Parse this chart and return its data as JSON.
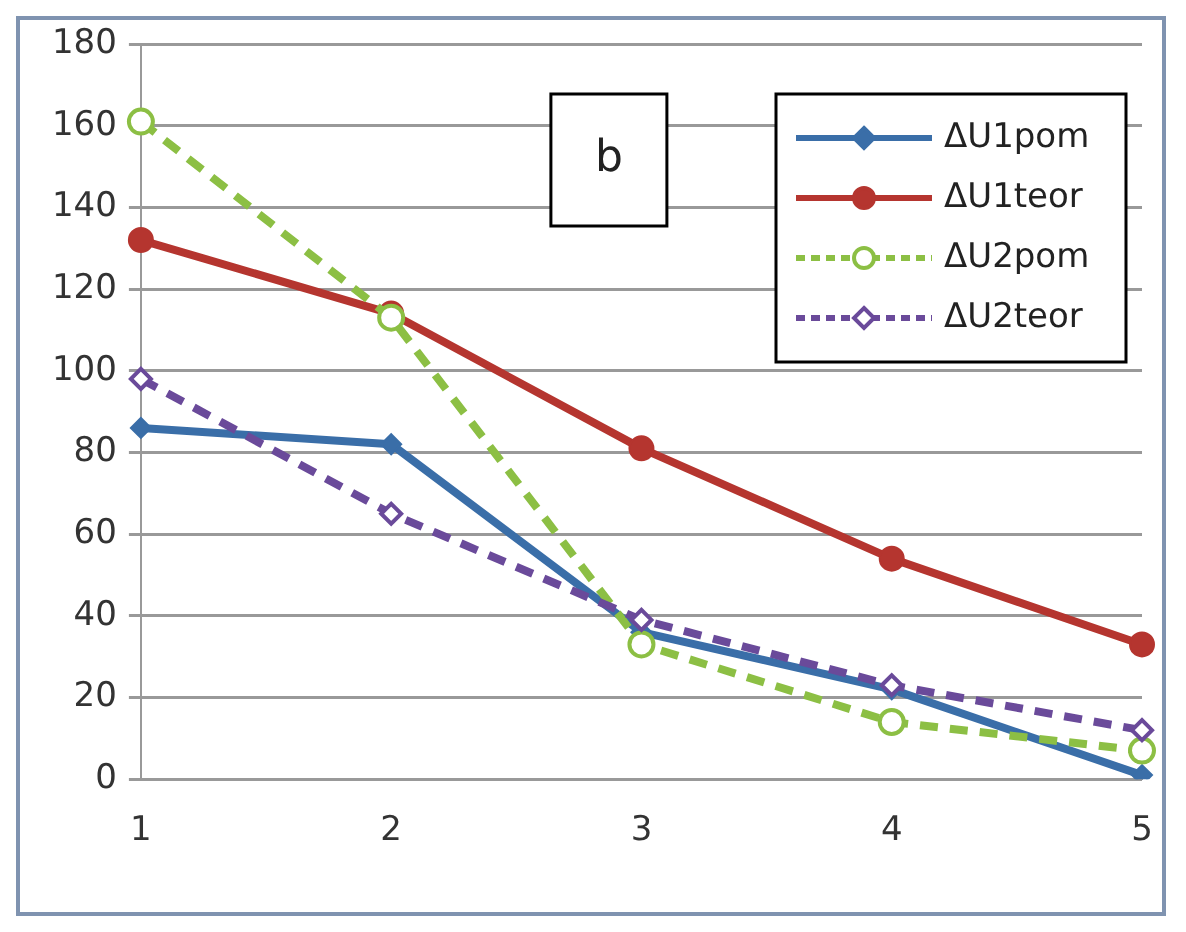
{
  "chart_data": {
    "type": "line",
    "categories": [
      "1",
      "2",
      "3",
      "4",
      "5"
    ],
    "series": [
      {
        "name": "ΔU1pom",
        "color": "#3a6ea8",
        "values": [
          86,
          82,
          36,
          22,
          1
        ],
        "marker": "diamond",
        "line_style": "solid"
      },
      {
        "name": "ΔU1teor",
        "color": "#b5352f",
        "values": [
          132,
          114,
          81,
          54,
          33
        ],
        "marker": "circle",
        "line_style": "solid"
      },
      {
        "name": "ΔU2pom",
        "color": "#8cbf44",
        "values": [
          161,
          113,
          33,
          14,
          7
        ],
        "marker": "circle",
        "line_style": "dashed"
      },
      {
        "name": "ΔU2teor",
        "color": "#6a4a9a",
        "values": [
          98,
          65,
          39,
          23,
          12
        ],
        "marker": "diamond",
        "line_style": "dashed"
      }
    ],
    "ylim": [
      0,
      180
    ],
    "yticks": [
      0,
      20,
      40,
      60,
      80,
      100,
      120,
      140,
      160,
      180
    ],
    "grid": "y",
    "legend": "top right",
    "annotations": [
      "b"
    ]
  }
}
